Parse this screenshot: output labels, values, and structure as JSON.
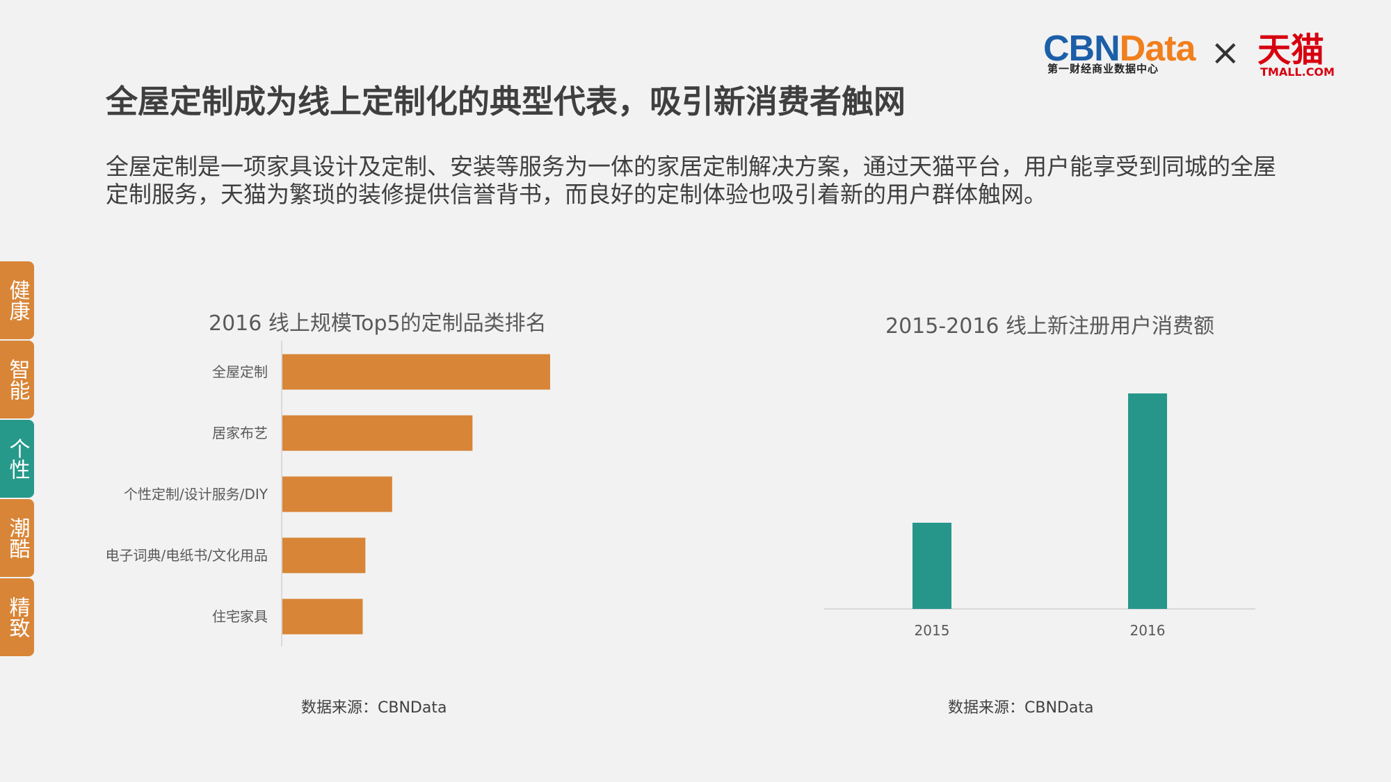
{
  "header": {
    "logo_cbn": "CBN",
    "logo_data": "Data",
    "logo_sub": "第一财经商业数据中心",
    "logo_times": "×",
    "logo_tmall_cn": "天猫",
    "logo_tmall_en": "TMALL.COM"
  },
  "title": "全屋定制成为线上定制化的典型代表，吸引新消费者触网",
  "description": "全屋定制是一项家具设计及定制、安装等服务为一体的家居定制解决方案，通过天猫平台，用户能享受到同城的全屋定制服务，天猫为繁琐的装修提供信誉背书，而良好的定制体验也吸引着新的用户群体触网。",
  "side_tabs": [
    {
      "label": "健康",
      "active": false
    },
    {
      "label": "智能",
      "active": false
    },
    {
      "label": "个性",
      "active": true
    },
    {
      "label": "潮酷",
      "active": false
    },
    {
      "label": "精致",
      "active": false
    }
  ],
  "colors": {
    "bar_orange": "#d88537",
    "bar_teal": "#26968a",
    "tab_orange": "#d88537",
    "tab_teal": "#26998a"
  },
  "chart_data": [
    {
      "type": "bar",
      "orientation": "horizontal",
      "title": "2016 线上规模Top5的定制品类排名",
      "categories": [
        "全屋定制",
        "居家布艺",
        "个性定制/设计服务/DIY",
        "电子词典/电纸书/文化用品",
        "住宅家具"
      ],
      "values": [
        100,
        71,
        41,
        31,
        30
      ],
      "xlabel": "",
      "ylabel": "",
      "xlim": [
        0,
        100
      ],
      "grid": false,
      "source": "数据来源：CBNData"
    },
    {
      "type": "bar",
      "orientation": "vertical",
      "title": "2015-2016 线上新注册用户消费额",
      "categories": [
        "2015",
        "2016"
      ],
      "values": [
        40,
        100
      ],
      "xlabel": "",
      "ylabel": "",
      "ylim": [
        0,
        100
      ],
      "grid": false,
      "source": "数据来源：CBNData"
    }
  ]
}
